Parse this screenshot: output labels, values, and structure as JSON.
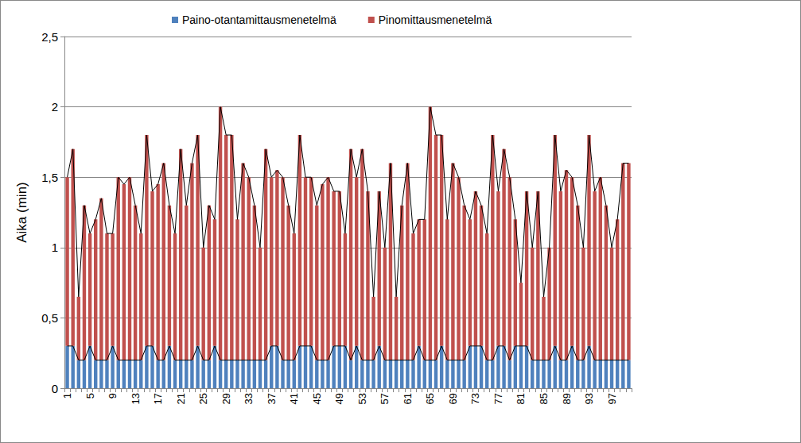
{
  "chart_data": {
    "type": "bar",
    "stacked": true,
    "grid": true,
    "legend": "top",
    "y_label": "Aika (min)",
    "categories": [
      "1",
      null,
      null,
      null,
      "5",
      null,
      null,
      null,
      "9",
      null,
      null,
      null,
      "13",
      null,
      null,
      null,
      "17",
      null,
      null,
      null,
      "21",
      null,
      null,
      null,
      "25",
      null,
      null,
      null,
      "29",
      null,
      null,
      null,
      "33",
      null,
      null,
      null,
      "37",
      null,
      null,
      null,
      "41",
      null,
      null,
      null,
      "45",
      null,
      null,
      null,
      "49",
      null,
      null,
      null,
      "53",
      null,
      null,
      null,
      "57",
      null,
      null,
      null,
      "61",
      null,
      null,
      null,
      "65",
      null,
      null,
      null,
      "69",
      null,
      null,
      null,
      "73",
      null,
      null,
      null,
      "77",
      null,
      null,
      null,
      "81",
      null,
      null,
      null,
      "85",
      null,
      null,
      null,
      "89",
      null,
      null,
      null,
      "93",
      null,
      null,
      null,
      "97",
      null,
      null,
      null
    ],
    "ylim": [
      0,
      2.5
    ],
    "yticks": [
      0,
      {
        "value": 0.5,
        "label": "0,5"
      },
      1,
      {
        "value": 1.5,
        "label": "1,5"
      },
      2,
      {
        "value": 2.5,
        "label": "2,5"
      }
    ],
    "series": [
      {
        "name": "Paino-otantamittausmenetelmä",
        "color": "#4f81bd",
        "values": [
          0.3,
          0.3,
          0.2,
          0.2,
          0.3,
          0.2,
          0.2,
          0.2,
          0.3,
          0.2,
          0.2,
          0.2,
          0.2,
          0.2,
          0.3,
          0.3,
          0.2,
          0.2,
          0.3,
          0.2,
          0.2,
          0.2,
          0.2,
          0.3,
          0.2,
          0.2,
          0.3,
          0.2,
          0.2,
          0.2,
          0.2,
          0.2,
          0.2,
          0.2,
          0.2,
          0.2,
          0.3,
          0.3,
          0.2,
          0.2,
          0.2,
          0.3,
          0.3,
          0.3,
          0.2,
          0.2,
          0.2,
          0.3,
          0.3,
          0.3,
          0.2,
          0.3,
          0.2,
          0.2,
          0.2,
          0.3,
          0.2,
          0.2,
          0.2,
          0.2,
          0.2,
          0.2,
          0.3,
          0.2,
          0.2,
          0.2,
          0.3,
          0.2,
          0.2,
          0.2,
          0.2,
          0.3,
          0.3,
          0.3,
          0.2,
          0.2,
          0.3,
          0.3,
          0.2,
          0.3,
          0.3,
          0.3,
          0.2,
          0.2,
          0.2,
          0.2,
          0.3,
          0.2,
          0.2,
          0.3,
          0.2,
          0.2,
          0.3,
          0.2,
          0.2,
          0.2,
          0.2,
          0.2,
          0.2,
          0.2
        ]
      },
      {
        "name": "Pinomittausmenetelmä",
        "color": "#c0504d",
        "values": [
          1.2,
          1.4,
          0.45,
          1.1,
          0.8,
          1.0,
          1.15,
          0.9,
          0.8,
          1.3,
          1.25,
          1.3,
          1.1,
          0.9,
          1.5,
          1.1,
          1.25,
          1.4,
          1.0,
          0.9,
          1.5,
          1.1,
          1.4,
          1.5,
          0.8,
          1.1,
          0.9,
          1.8,
          1.6,
          1.6,
          1.0,
          1.4,
          1.3,
          1.1,
          0.8,
          1.5,
          1.2,
          1.25,
          1.3,
          1.1,
          0.9,
          1.5,
          1.2,
          1.2,
          1.1,
          1.25,
          1.3,
          1.1,
          1.1,
          0.8,
          1.5,
          1.2,
          1.5,
          1.2,
          0.45,
          1.1,
          0.8,
          1.4,
          0.45,
          1.1,
          1.4,
          0.9,
          0.9,
          1.0,
          1.8,
          1.6,
          1.5,
          1.0,
          1.4,
          1.3,
          1.1,
          0.9,
          1.1,
          1.0,
          0.9,
          1.6,
          1.1,
          1.4,
          1.3,
          0.9,
          0.45,
          1.1,
          0.8,
          1.2,
          0.45,
          0.8,
          1.5,
          1.2,
          1.35,
          1.2,
          1.1,
          0.8,
          1.5,
          1.2,
          1.3,
          1.1,
          0.8,
          1.0,
          1.4,
          1.4
        ]
      }
    ]
  }
}
